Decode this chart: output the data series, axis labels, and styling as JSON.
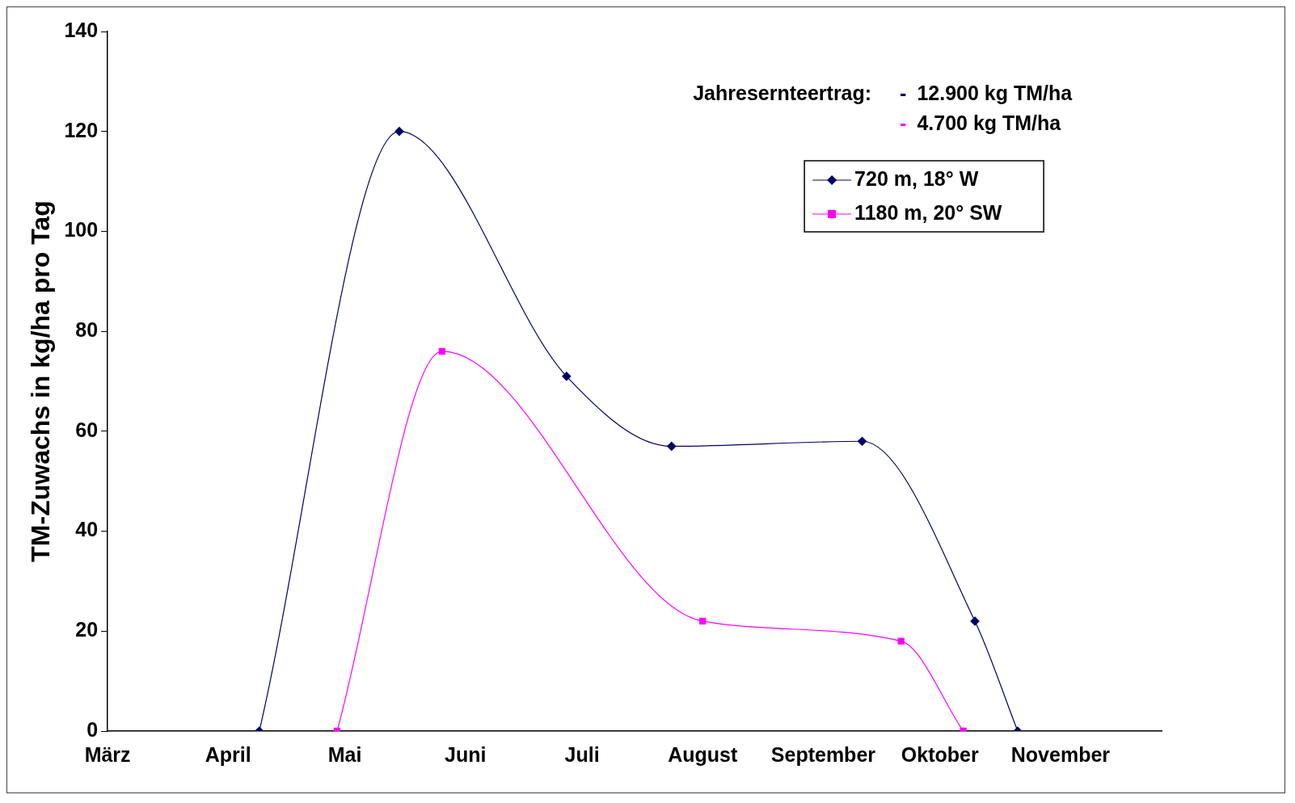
{
  "chart_data": {
    "type": "line",
    "ylabel": "TM-Zuwachs in kg/ha pro Tag",
    "xlim": [
      "--03-01",
      "--11-27"
    ],
    "xticks": [
      {
        "value": "--03-01",
        "label": "März"
      },
      {
        "value": "--04-01",
        "label": "April"
      },
      {
        "value": "--05-01",
        "label": "Mai"
      },
      {
        "value": "--06-01",
        "label": "Juni"
      },
      {
        "value": "--07-01",
        "label": "Juli"
      },
      {
        "value": "--08-01",
        "label": "August"
      },
      {
        "value": "--09-01",
        "label": "September"
      },
      {
        "value": "--10-01",
        "label": "Oktober"
      },
      {
        "value": "--11-01",
        "label": "November"
      }
    ],
    "ylim": [
      0,
      140
    ],
    "yticks": [
      0,
      20,
      40,
      60,
      80,
      100,
      120,
      140
    ],
    "grid": false,
    "legend": "top right",
    "series": [
      {
        "name": "720 m, 18° W",
        "color": "#000066",
        "marker": "diamond",
        "x": [
          "--04-09",
          "--05-15",
          "--06-27",
          "--07-24",
          "--09-11",
          "--10-10",
          "--10-21"
        ],
        "values": [
          0,
          120,
          71,
          57,
          58,
          22,
          0
        ]
      },
      {
        "name": "1180 m, 20° SW",
        "color": "#ff00ff",
        "marker": "square",
        "x": [
          "--04-29",
          "--05-26",
          "--08-01",
          "--09-21",
          "--10-07"
        ],
        "values": [
          0,
          76,
          22,
          18,
          0
        ]
      }
    ],
    "annotations": [
      "Jahresernteertrag:",
      "- 12.900 kg TM/ha",
      "- 4.700 kg TM/ha"
    ]
  }
}
